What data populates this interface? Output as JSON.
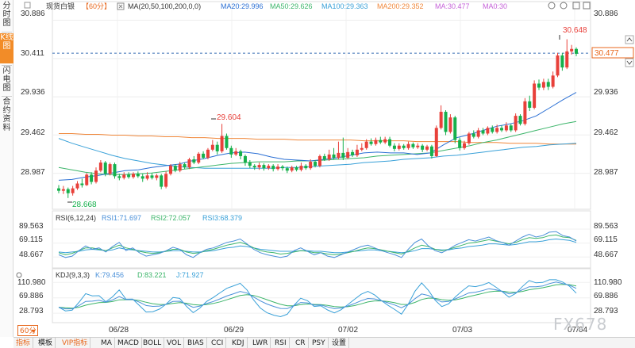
{
  "left_nav": [
    {
      "label": "分时图",
      "active": false
    },
    {
      "label": "K线图",
      "active": true
    },
    {
      "label": "闪电图",
      "active": false
    },
    {
      "label": "合约资料",
      "active": false
    }
  ],
  "main_header": {
    "symbol": "现货白银",
    "period": "【60分】",
    "ma_params": "MA(20,50,100,200,0,0)",
    "ma20": "MA20:29.996",
    "ma50": "MA50:29.626",
    "ma100": "MA100:29.363",
    "ma200": "MA200:29.352",
    "ma_a": "MA:30.477",
    "ma_b": "MA0:30"
  },
  "rsi_header": {
    "params": "RSI(6,12,24)",
    "rsi1": "RSI1:71.697",
    "rsi2": "RSI2:72.057",
    "rsi3": "RSI3:68.379"
  },
  "kdj_header": {
    "params": "KDJ(9,3,3)",
    "k": "K:79.456",
    "d": "D:83.221",
    "j": "J:71.927"
  },
  "price_axis": [
    "30.886",
    "30.411",
    "29.936",
    "29.462",
    "28.987"
  ],
  "current_price_tag": "30.477",
  "rsi_axis": [
    "89.563",
    "69.115",
    "48.667"
  ],
  "kdj_axis": [
    "110.980",
    "69.886",
    "28.793"
  ],
  "date_labels": [
    "06/28",
    "06/29",
    "07/02",
    "07/03",
    "07/04"
  ],
  "annotations": {
    "high": "30.648",
    "mid_high": "29.604",
    "low": "28.668"
  },
  "period_selector": "60分",
  "bottom_tabs": [
    "指标",
    "模板",
    "VIP指标",
    "MA",
    "MACD",
    "BOLL",
    "VOL",
    "BIAS",
    "CCI",
    "KDJ",
    "LWR",
    "RSI",
    "CR",
    "PSY",
    "设置"
  ],
  "watermark": "FX678",
  "colors": {
    "up": "#e8403a",
    "down": "#15b04b",
    "ma20": "#2a6fd4",
    "ma50": "#3cb56a",
    "ma100": "#38a0d8",
    "ma200": "#f0873a",
    "accent": "#e8671c",
    "rsi1": "#4a90d9",
    "rsi2": "#3cb56a",
    "rsi3": "#38a0d8",
    "kdj_k": "#4a90d9",
    "kdj_d": "#3cb56a",
    "kdj_j": "#38a0d8"
  },
  "chart_data": {
    "type": "candlestick",
    "y_range": [
      28.56,
      30.98
    ],
    "current_price": 30.477,
    "candles": [
      [
        28.8,
        28.77,
        28.84,
        28.74
      ],
      [
        28.77,
        28.79,
        28.83,
        28.73
      ],
      [
        28.79,
        28.74,
        28.81,
        28.68
      ],
      [
        28.74,
        28.8,
        28.83,
        28.71
      ],
      [
        28.8,
        28.86,
        28.89,
        28.78
      ],
      [
        28.86,
        28.84,
        28.92,
        28.81
      ],
      [
        28.84,
        28.97,
        28.99,
        28.83
      ],
      [
        28.97,
        28.88,
        29.0,
        28.85
      ],
      [
        28.88,
        29.02,
        29.06,
        28.86
      ],
      [
        29.02,
        29.12,
        29.15,
        29.0
      ],
      [
        29.12,
        28.98,
        29.14,
        28.95
      ],
      [
        28.98,
        29.1,
        29.12,
        28.96
      ],
      [
        29.1,
        28.95,
        29.12,
        28.92
      ],
      [
        28.95,
        28.93,
        28.98,
        28.9
      ],
      [
        28.93,
        28.97,
        29.0,
        28.91
      ],
      [
        28.97,
        28.94,
        29.0,
        28.92
      ],
      [
        28.94,
        28.98,
        29.0,
        28.92
      ],
      [
        28.98,
        28.95,
        29.01,
        28.93
      ],
      [
        28.95,
        28.92,
        28.98,
        28.88
      ],
      [
        28.92,
        28.96,
        29.0,
        28.9
      ],
      [
        28.96,
        28.93,
        28.99,
        28.91
      ],
      [
        28.93,
        28.96,
        28.98,
        28.9
      ],
      [
        28.96,
        28.82,
        28.98,
        28.79
      ],
      [
        28.82,
        28.98,
        29.01,
        28.8
      ],
      [
        28.98,
        29.08,
        29.1,
        28.96
      ],
      [
        29.08,
        29.02,
        29.1,
        29.0
      ],
      [
        29.02,
        29.1,
        29.13,
        29.0
      ],
      [
        29.1,
        29.06,
        29.12,
        29.04
      ],
      [
        29.06,
        29.16,
        29.18,
        29.04
      ],
      [
        29.16,
        29.12,
        29.2,
        29.1
      ],
      [
        29.12,
        29.23,
        29.25,
        29.1
      ],
      [
        29.23,
        29.18,
        29.26,
        29.16
      ],
      [
        29.18,
        29.28,
        29.3,
        29.16
      ],
      [
        29.28,
        29.34,
        29.4,
        29.26
      ],
      [
        29.34,
        29.26,
        29.38,
        29.22
      ],
      [
        29.26,
        29.45,
        29.6,
        29.24
      ],
      [
        29.45,
        29.3,
        29.48,
        29.28
      ],
      [
        29.3,
        29.22,
        29.33,
        29.18
      ],
      [
        29.22,
        29.26,
        29.3,
        29.2
      ],
      [
        29.26,
        29.2,
        29.28,
        29.16
      ],
      [
        29.2,
        29.12,
        29.22,
        29.08
      ],
      [
        29.12,
        29.08,
        29.15,
        29.05
      ],
      [
        29.08,
        29.06,
        29.1,
        29.03
      ],
      [
        29.06,
        29.09,
        29.12,
        29.03
      ],
      [
        29.09,
        29.05,
        29.11,
        29.02
      ],
      [
        29.05,
        29.08,
        29.1,
        29.03
      ],
      [
        29.08,
        29.04,
        29.1,
        29.01
      ],
      [
        29.04,
        29.07,
        29.1,
        29.02
      ],
      [
        29.07,
        29.05,
        29.09,
        29.02
      ],
      [
        29.05,
        29.02,
        29.07,
        28.99
      ],
      [
        29.02,
        29.06,
        29.08,
        29.0
      ],
      [
        29.06,
        29.03,
        29.08,
        29.01
      ],
      [
        29.03,
        29.08,
        29.12,
        29.01
      ],
      [
        29.08,
        29.05,
        29.1,
        29.03
      ],
      [
        29.05,
        29.13,
        29.16,
        29.03
      ],
      [
        29.13,
        29.08,
        29.15,
        29.06
      ],
      [
        29.08,
        29.2,
        29.22,
        29.06
      ],
      [
        29.2,
        29.16,
        29.23,
        29.14
      ],
      [
        29.16,
        29.22,
        29.28,
        29.14
      ],
      [
        29.22,
        29.18,
        29.3,
        29.16
      ],
      [
        29.18,
        29.24,
        29.38,
        29.16
      ],
      [
        29.24,
        29.18,
        29.43,
        29.15
      ],
      [
        29.18,
        29.25,
        29.3,
        29.16
      ],
      [
        29.25,
        29.21,
        29.28,
        29.19
      ],
      [
        29.21,
        29.28,
        29.34,
        29.19
      ],
      [
        29.28,
        29.3,
        29.36,
        29.26
      ],
      [
        29.3,
        29.38,
        29.41,
        29.28
      ],
      [
        29.38,
        29.35,
        29.42,
        29.33
      ],
      [
        29.35,
        29.4,
        29.43,
        29.33
      ],
      [
        29.4,
        29.37,
        29.44,
        29.35
      ],
      [
        29.37,
        29.41,
        29.44,
        29.35
      ],
      [
        29.41,
        29.33,
        29.44,
        29.31
      ],
      [
        29.33,
        29.29,
        29.36,
        29.26
      ],
      [
        29.29,
        29.33,
        29.36,
        29.27
      ],
      [
        29.33,
        29.3,
        29.35,
        29.28
      ],
      [
        29.3,
        29.35,
        29.38,
        29.28
      ],
      [
        29.35,
        29.31,
        29.37,
        29.29
      ],
      [
        29.31,
        29.33,
        29.36,
        29.29
      ],
      [
        29.33,
        29.28,
        29.35,
        29.25
      ],
      [
        29.28,
        29.32,
        29.34,
        29.26
      ],
      [
        29.32,
        29.2,
        29.34,
        29.17
      ],
      [
        29.2,
        29.55,
        29.58,
        29.19
      ],
      [
        29.55,
        29.75,
        29.83,
        29.53
      ],
      [
        29.75,
        29.5,
        29.77,
        29.46
      ],
      [
        29.5,
        29.68,
        29.72,
        29.48
      ],
      [
        29.68,
        29.4,
        29.7,
        29.36
      ],
      [
        29.4,
        29.3,
        29.43,
        29.27
      ],
      [
        29.3,
        29.36,
        29.39,
        29.28
      ],
      [
        29.36,
        29.48,
        29.5,
        29.34
      ],
      [
        29.48,
        29.44,
        29.52,
        29.42
      ],
      [
        29.44,
        29.52,
        29.55,
        29.42
      ],
      [
        29.52,
        29.48,
        29.55,
        29.46
      ],
      [
        29.48,
        29.55,
        29.57,
        29.46
      ],
      [
        29.55,
        29.5,
        29.58,
        29.48
      ],
      [
        29.5,
        29.55,
        29.59,
        29.48
      ],
      [
        29.55,
        29.52,
        29.58,
        29.5
      ],
      [
        29.52,
        29.58,
        29.62,
        29.5
      ],
      [
        29.58,
        29.52,
        29.6,
        29.5
      ],
      [
        29.52,
        29.7,
        29.73,
        29.5
      ],
      [
        29.7,
        29.6,
        29.72,
        29.58
      ],
      [
        29.6,
        29.88,
        29.92,
        29.58
      ],
      [
        29.88,
        29.8,
        29.95,
        29.76
      ],
      [
        29.8,
        30.1,
        30.14,
        29.78
      ],
      [
        30.1,
        30.05,
        30.15,
        30.02
      ],
      [
        30.05,
        30.12,
        30.16,
        30.02
      ],
      [
        30.12,
        30.06,
        30.16,
        30.02
      ],
      [
        30.06,
        30.2,
        30.25,
        30.04
      ],
      [
        30.2,
        30.45,
        30.48,
        30.18
      ],
      [
        30.45,
        30.3,
        30.48,
        30.26
      ],
      [
        30.3,
        30.5,
        30.65,
        30.28
      ],
      [
        30.5,
        30.53,
        30.58,
        30.46
      ],
      [
        30.53,
        30.47,
        30.55,
        30.44
      ]
    ],
    "ma20": [
      28.9,
      28.91,
      28.94,
      28.96,
      28.99,
      29.02,
      29.03,
      29.06,
      29.08,
      29.1,
      29.14,
      29.17,
      29.21,
      29.24,
      29.25,
      29.23,
      29.19,
      29.16,
      29.15,
      29.14,
      29.16,
      29.18,
      29.21,
      29.24,
      29.25,
      29.24,
      29.24,
      29.22,
      29.24,
      29.34,
      29.43,
      29.47,
      29.52,
      29.57,
      29.6,
      29.64,
      29.7,
      29.8,
      29.9,
      29.99
    ],
    "ma50": [
      29.06,
      29.03,
      29.0,
      28.98,
      28.97,
      28.97,
      28.98,
      28.99,
      29.01,
      29.03,
      29.05,
      29.07,
      29.09,
      29.11,
      29.12,
      29.13,
      29.13,
      29.13,
      29.14,
      29.14,
      29.15,
      29.16,
      29.17,
      29.18,
      29.2,
      29.21,
      29.22,
      29.23,
      29.24,
      29.27,
      29.3,
      29.33,
      29.37,
      29.4,
      29.44,
      29.48,
      29.52,
      29.56,
      29.6,
      29.63
    ],
    "ma100": [
      29.42,
      29.36,
      29.31,
      29.26,
      29.21,
      29.17,
      29.14,
      29.11,
      29.09,
      29.07,
      29.06,
      29.05,
      29.05,
      29.05,
      29.05,
      29.05,
      29.05,
      29.06,
      29.06,
      29.07,
      29.08,
      29.09,
      29.1,
      29.12,
      29.13,
      29.14,
      29.16,
      29.17,
      29.18,
      29.2,
      29.21,
      29.23,
      29.25,
      29.27,
      29.29,
      29.31,
      29.32,
      29.34,
      29.35,
      29.36
    ],
    "ma200": [
      29.48,
      29.48,
      29.47,
      29.47,
      29.46,
      29.46,
      29.45,
      29.45,
      29.44,
      29.44,
      29.43,
      29.43,
      29.42,
      29.42,
      29.42,
      29.41,
      29.41,
      29.41,
      29.4,
      29.4,
      29.4,
      29.4,
      29.4,
      29.39,
      29.39,
      29.39,
      29.39,
      29.38,
      29.38,
      29.38,
      29.38,
      29.37,
      29.37,
      29.37,
      29.36,
      29.36,
      29.36,
      29.35,
      29.35,
      29.35
    ],
    "rsi_range": [
      35,
      100
    ],
    "rsi1": [
      52,
      48,
      50,
      58,
      65,
      60,
      62,
      56,
      64,
      70,
      58,
      62,
      55,
      50,
      52,
      54,
      58,
      63,
      60,
      52,
      48,
      55,
      60,
      62,
      66,
      70,
      72,
      75,
      68,
      60,
      55,
      52,
      50,
      48,
      50,
      58,
      62,
      57,
      52,
      55,
      50,
      48,
      52,
      56,
      60,
      64,
      66,
      62,
      58,
      55,
      52,
      48,
      60,
      70,
      75,
      65,
      58,
      55,
      60,
      66,
      70,
      74,
      72,
      75,
      78,
      73,
      70,
      66,
      72,
      78,
      82,
      78,
      80,
      85,
      86,
      80,
      78,
      72
    ],
    "rsi2": [
      55,
      52,
      54,
      58,
      62,
      62,
      60,
      58,
      62,
      66,
      62,
      60,
      57,
      55,
      54,
      55,
      57,
      60,
      60,
      56,
      54,
      55,
      58,
      60,
      63,
      66,
      68,
      70,
      67,
      62,
      58,
      56,
      55,
      53,
      54,
      56,
      58,
      57,
      55,
      55,
      53,
      52,
      53,
      55,
      57,
      60,
      62,
      61,
      59,
      57,
      55,
      53,
      57,
      62,
      66,
      64,
      60,
      58,
      60,
      63,
      66,
      69,
      70,
      72,
      74,
      72,
      70,
      68,
      70,
      74,
      77,
      76,
      77,
      80,
      81,
      78,
      77,
      73
    ],
    "rsi3": [
      56,
      55,
      56,
      57,
      59,
      60,
      59,
      58,
      59,
      62,
      60,
      59,
      58,
      57,
      56,
      56,
      57,
      58,
      58,
      57,
      56,
      56,
      57,
      58,
      60,
      62,
      63,
      65,
      64,
      62,
      60,
      59,
      58,
      57,
      57,
      57,
      58,
      58,
      57,
      57,
      56,
      55,
      55,
      56,
      57,
      58,
      59,
      59,
      58,
      57,
      56,
      55,
      56,
      58,
      61,
      61,
      60,
      59,
      59,
      61,
      62,
      64,
      65,
      66,
      68,
      68,
      67,
      66,
      67,
      69,
      71,
      71,
      72,
      74,
      75,
      74,
      73,
      70
    ]
  }
}
